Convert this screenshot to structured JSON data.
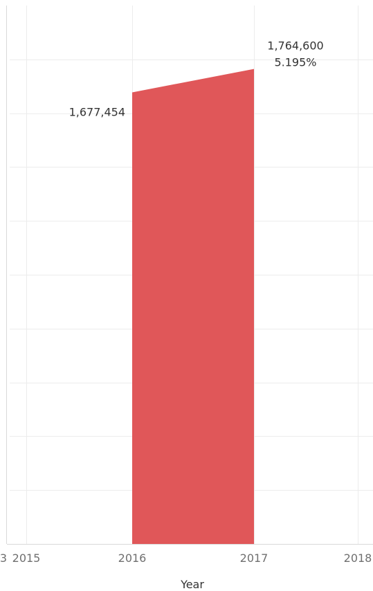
{
  "chart_data": {
    "type": "area",
    "x": [
      2016,
      2017
    ],
    "values": [
      1677454,
      1764600
    ],
    "data_labels": [
      "1,677,454",
      "1,764,600"
    ],
    "change_label": "5.195%",
    "x_ticks": [
      "2015",
      "2016",
      "2017",
      "2018"
    ],
    "xlabel": "Year",
    "ylabel": "",
    "ylim": [
      0,
      2000000
    ],
    "grid": true,
    "color": "#e05759"
  }
}
